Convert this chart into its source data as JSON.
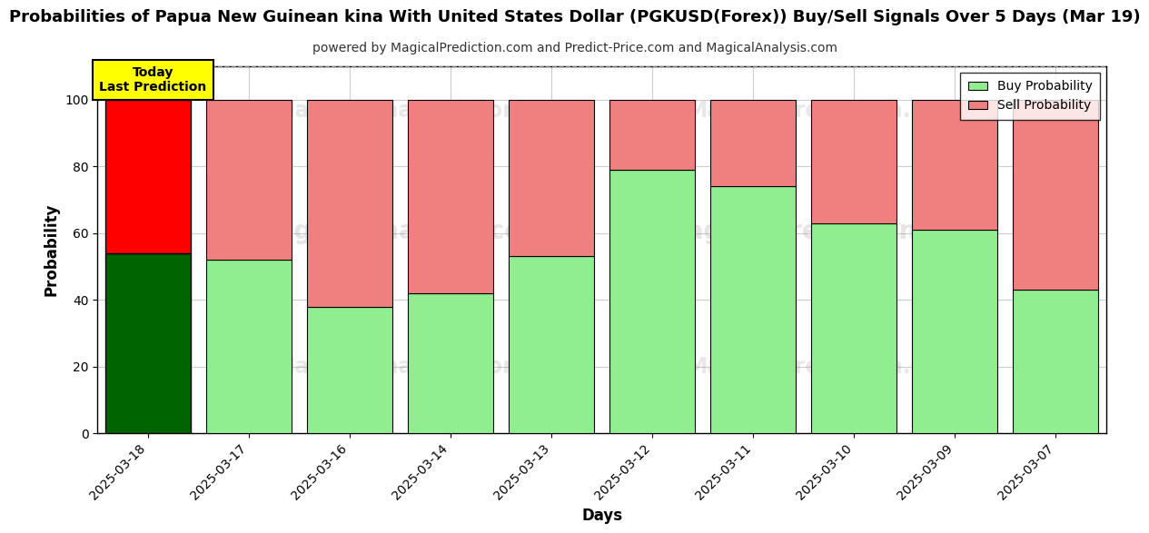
{
  "title": "Probabilities of Papua New Guinean kina With United States Dollar (PGKUSD(Forex)) Buy/Sell Signals Over 5 Days (Mar 19)",
  "subtitle": "powered by MagicalPrediction.com and Predict-Price.com and MagicalAnalysis.com",
  "xlabel": "Days",
  "ylabel": "Probability",
  "dates": [
    "2025-03-18",
    "2025-03-17",
    "2025-03-16",
    "2025-03-14",
    "2025-03-13",
    "2025-03-12",
    "2025-03-11",
    "2025-03-10",
    "2025-03-09",
    "2025-03-07"
  ],
  "buy_values": [
    54,
    52,
    38,
    42,
    53,
    79,
    74,
    63,
    61,
    43
  ],
  "sell_values": [
    46,
    48,
    62,
    58,
    47,
    21,
    26,
    37,
    39,
    57
  ],
  "today_buy_color": "#006400",
  "today_sell_color": "#FF0000",
  "buy_color": "#90EE90",
  "sell_color": "#F08080",
  "today_label_bg": "#FFFF00",
  "today_label_text": "Today\nLast Prediction",
  "legend_buy": "Buy Probability",
  "legend_sell": "Sell Probability",
  "ylim": [
    0,
    110
  ],
  "yticks": [
    0,
    20,
    40,
    60,
    80,
    100
  ],
  "dashed_line_y": 110,
  "background_color": "#ffffff",
  "grid_color": "#cccccc",
  "title_fontsize": 13,
  "subtitle_fontsize": 10,
  "axis_label_fontsize": 12,
  "tick_fontsize": 10,
  "bar_width": 0.85
}
